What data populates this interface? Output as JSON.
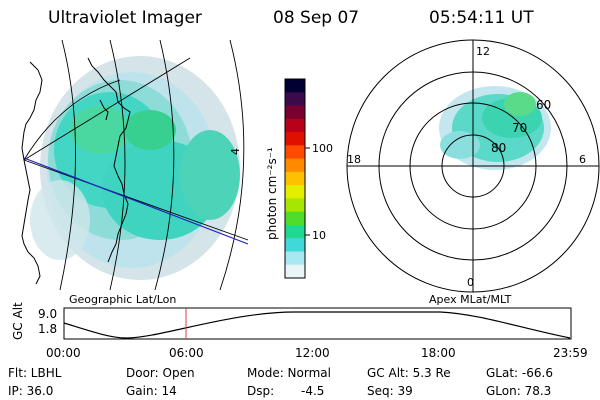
{
  "header": {
    "title": "Ultraviolet Imager",
    "date": "08 Sep 07",
    "time": "05:54:11 UT"
  },
  "left_panel": {
    "caption": "Geographic Lat/Lon",
    "edge_label": "4"
  },
  "colorbar": {
    "label": "photon cm⁻²s⁻¹",
    "ticks": [
      "100",
      "10"
    ],
    "colors": [
      "#000033",
      "#3a0a4a",
      "#7a0030",
      "#b80018",
      "#e01000",
      "#ff4a00",
      "#ff8a00",
      "#ffc000",
      "#e6ee00",
      "#a6e600",
      "#50dc2a",
      "#20d890",
      "#40d8d8",
      "#a8e8f0",
      "#e8f4f8"
    ]
  },
  "polar_panel": {
    "caption": "Apex MLat/MLT",
    "mlt_labels": {
      "top": "12",
      "bottom": "0",
      "left": "18",
      "right": "6"
    },
    "lat_labels": [
      "60",
      "70",
      "80"
    ]
  },
  "timeline": {
    "ylabel": "GC Alt",
    "yticks": [
      "9.0",
      "1.8"
    ],
    "xticks": [
      "00:00",
      "06:00",
      "12:00",
      "18:00",
      "23:59"
    ],
    "marker_time": "05:54",
    "marker_color": "#e04040"
  },
  "info": {
    "flt": "Flt: LBHL",
    "door": "Door: Open",
    "mode": "Mode: Normal",
    "gcalt": "GC Alt: 5.3 Re",
    "glat": "GLat: -66.6",
    "ip": "IP: 36.0",
    "gain": "Gain: 14",
    "dsp_label": "Dsp:",
    "dsp_value": "-4.5",
    "seq": "Seq: 39",
    "glon": "GLon: 78.3"
  }
}
